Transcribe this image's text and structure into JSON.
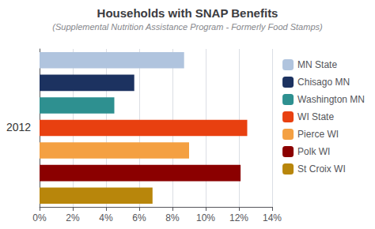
{
  "chart_data": {
    "type": "bar",
    "orientation": "horizontal",
    "title": "Households with SNAP Benefits",
    "subtitle": "(Supplemental Nutrition Assistance Program - Formerly Food Stamps)",
    "annotation": "2012",
    "categories": [
      "MN State",
      "Chisago MN",
      "Washington MN",
      "WI State",
      "Pierce WI",
      "Polk WI",
      "St Croix WI"
    ],
    "values": [
      8.7,
      5.7,
      4.5,
      12.5,
      9.0,
      12.1,
      6.8
    ],
    "colors": [
      "#b0c4de",
      "#1c3260",
      "#2e9090",
      "#e84010",
      "#f4a042",
      "#8b0000",
      "#b8860b"
    ],
    "xlim": [
      0,
      14
    ],
    "xticks": [
      {
        "value": 0,
        "label": "0%"
      },
      {
        "value": 2,
        "label": "2%"
      },
      {
        "value": 4,
        "label": "4%"
      },
      {
        "value": 6,
        "label": "6%"
      },
      {
        "value": 8,
        "label": "8%"
      },
      {
        "value": 10,
        "label": "10%"
      },
      {
        "value": 12,
        "label": "12%"
      },
      {
        "value": 14,
        "label": "14%"
      }
    ],
    "grid": true,
    "legend": "right",
    "tick_labels": "x"
  }
}
